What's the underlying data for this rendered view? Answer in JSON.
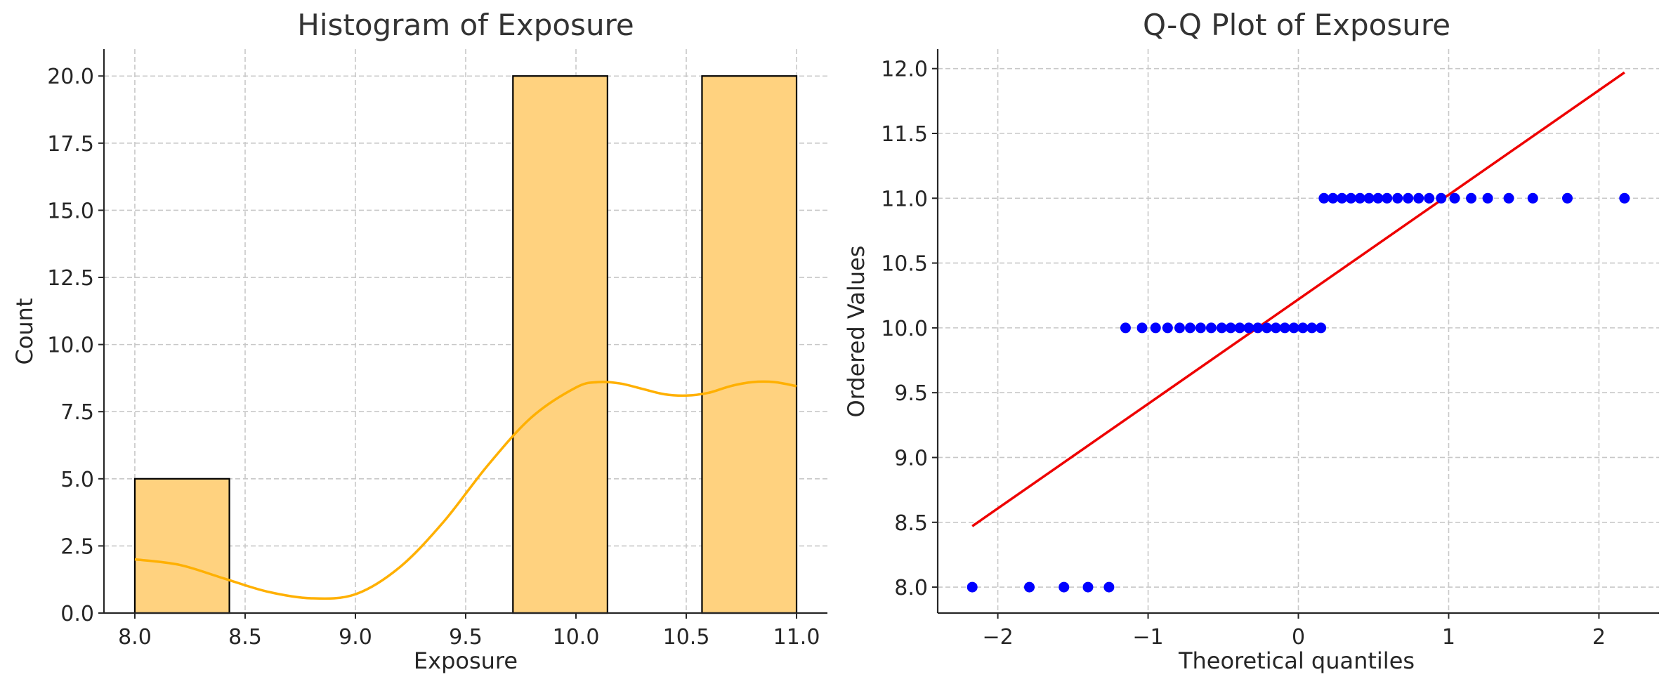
{
  "chart_data": [
    {
      "type": "bar",
      "title": "Histogram of Exposure",
      "xlabel": "Exposure",
      "ylabel": "Count",
      "xlim": [
        7.86,
        11.14
      ],
      "ylim": [
        0,
        21
      ],
      "xticks": [
        8.0,
        8.5,
        9.0,
        9.5,
        10.0,
        10.5,
        11.0
      ],
      "xtick_labels": [
        "8.0",
        "8.5",
        "9.0",
        "9.5",
        "10.0",
        "10.5",
        "11.0"
      ],
      "yticks": [
        0,
        2.5,
        5,
        7.5,
        10,
        12.5,
        15,
        17.5,
        20
      ],
      "ytick_labels": [
        "0.0",
        "2.5",
        "5.0",
        "7.5",
        "10.0",
        "12.5",
        "15.0",
        "17.5",
        "20.0"
      ],
      "grid": true,
      "bar_color": "#FFD27F",
      "bar_edge_color": "#000000",
      "bins": [
        {
          "start": 8.0,
          "end": 8.4286,
          "count": 5
        },
        {
          "start": 9.7143,
          "end": 10.1429,
          "count": 20
        },
        {
          "start": 10.5714,
          "end": 11.0,
          "count": 20
        }
      ],
      "kde": {
        "color": "#FFB000",
        "x": [
          8.0,
          8.2,
          8.4,
          8.6,
          8.8,
          9.0,
          9.2,
          9.4,
          9.6,
          9.8,
          10.0,
          10.1,
          10.2,
          10.3,
          10.4,
          10.5,
          10.6,
          10.7,
          10.8,
          10.9,
          11.0
        ],
        "y": [
          2.0,
          1.8,
          1.3,
          0.8,
          0.55,
          0.7,
          1.7,
          3.4,
          5.5,
          7.3,
          8.4,
          8.6,
          8.55,
          8.35,
          8.15,
          8.1,
          8.2,
          8.45,
          8.6,
          8.6,
          8.45
        ]
      }
    },
    {
      "type": "scatter",
      "title": "Q-Q Plot of Exposure",
      "xlabel": "Theoretical quantiles",
      "ylabel": "Ordered Values",
      "xlim": [
        -2.4,
        2.4
      ],
      "ylim": [
        7.8,
        12.15
      ],
      "xticks": [
        -2,
        -1,
        0,
        1,
        2
      ],
      "xtick_labels": [
        "−2",
        "−1",
        "0",
        "1",
        "2"
      ],
      "yticks": [
        8.0,
        8.5,
        9.0,
        9.5,
        10.0,
        10.5,
        11.0,
        11.5,
        12.0
      ],
      "ytick_labels": [
        "8.0",
        "8.5",
        "9.0",
        "9.5",
        "10.0",
        "10.5",
        "11.0",
        "11.5",
        "12.0"
      ],
      "grid": true,
      "point_color": "#0000FF",
      "points": [
        [
          -2.17,
          8.0
        ],
        [
          -1.79,
          8.0
        ],
        [
          -1.56,
          8.0
        ],
        [
          -1.4,
          8.0
        ],
        [
          -1.26,
          8.0
        ],
        [
          -1.15,
          10.0
        ],
        [
          -1.04,
          10.0
        ],
        [
          -0.95,
          10.0
        ],
        [
          -0.87,
          10.0
        ],
        [
          -0.79,
          10.0
        ],
        [
          -0.72,
          10.0
        ],
        [
          -0.65,
          10.0
        ],
        [
          -0.58,
          10.0
        ],
        [
          -0.51,
          10.0
        ],
        [
          -0.45,
          10.0
        ],
        [
          -0.39,
          10.0
        ],
        [
          -0.33,
          10.0
        ],
        [
          -0.27,
          10.0
        ],
        [
          -0.21,
          10.0
        ],
        [
          -0.15,
          10.0
        ],
        [
          -0.09,
          10.0
        ],
        [
          -0.03,
          10.0
        ],
        [
          0.03,
          10.0
        ],
        [
          0.09,
          10.0
        ],
        [
          0.15,
          10.0
        ],
        [
          0.17,
          11.0
        ],
        [
          0.23,
          11.0
        ],
        [
          0.29,
          11.0
        ],
        [
          0.35,
          11.0
        ],
        [
          0.41,
          11.0
        ],
        [
          0.47,
          11.0
        ],
        [
          0.53,
          11.0
        ],
        [
          0.59,
          11.0
        ],
        [
          0.66,
          11.0
        ],
        [
          0.73,
          11.0
        ],
        [
          0.8,
          11.0
        ],
        [
          0.87,
          11.0
        ],
        [
          0.95,
          11.0
        ],
        [
          1.04,
          11.0
        ],
        [
          1.15,
          11.0
        ],
        [
          1.26,
          11.0
        ],
        [
          1.4,
          11.0
        ],
        [
          1.56,
          11.0
        ],
        [
          1.79,
          11.0
        ],
        [
          2.17,
          11.0
        ]
      ],
      "fit_line": {
        "color": "#EE0000",
        "x": [
          -2.17,
          2.17
        ],
        "y": [
          8.47,
          11.97
        ]
      }
    }
  ]
}
